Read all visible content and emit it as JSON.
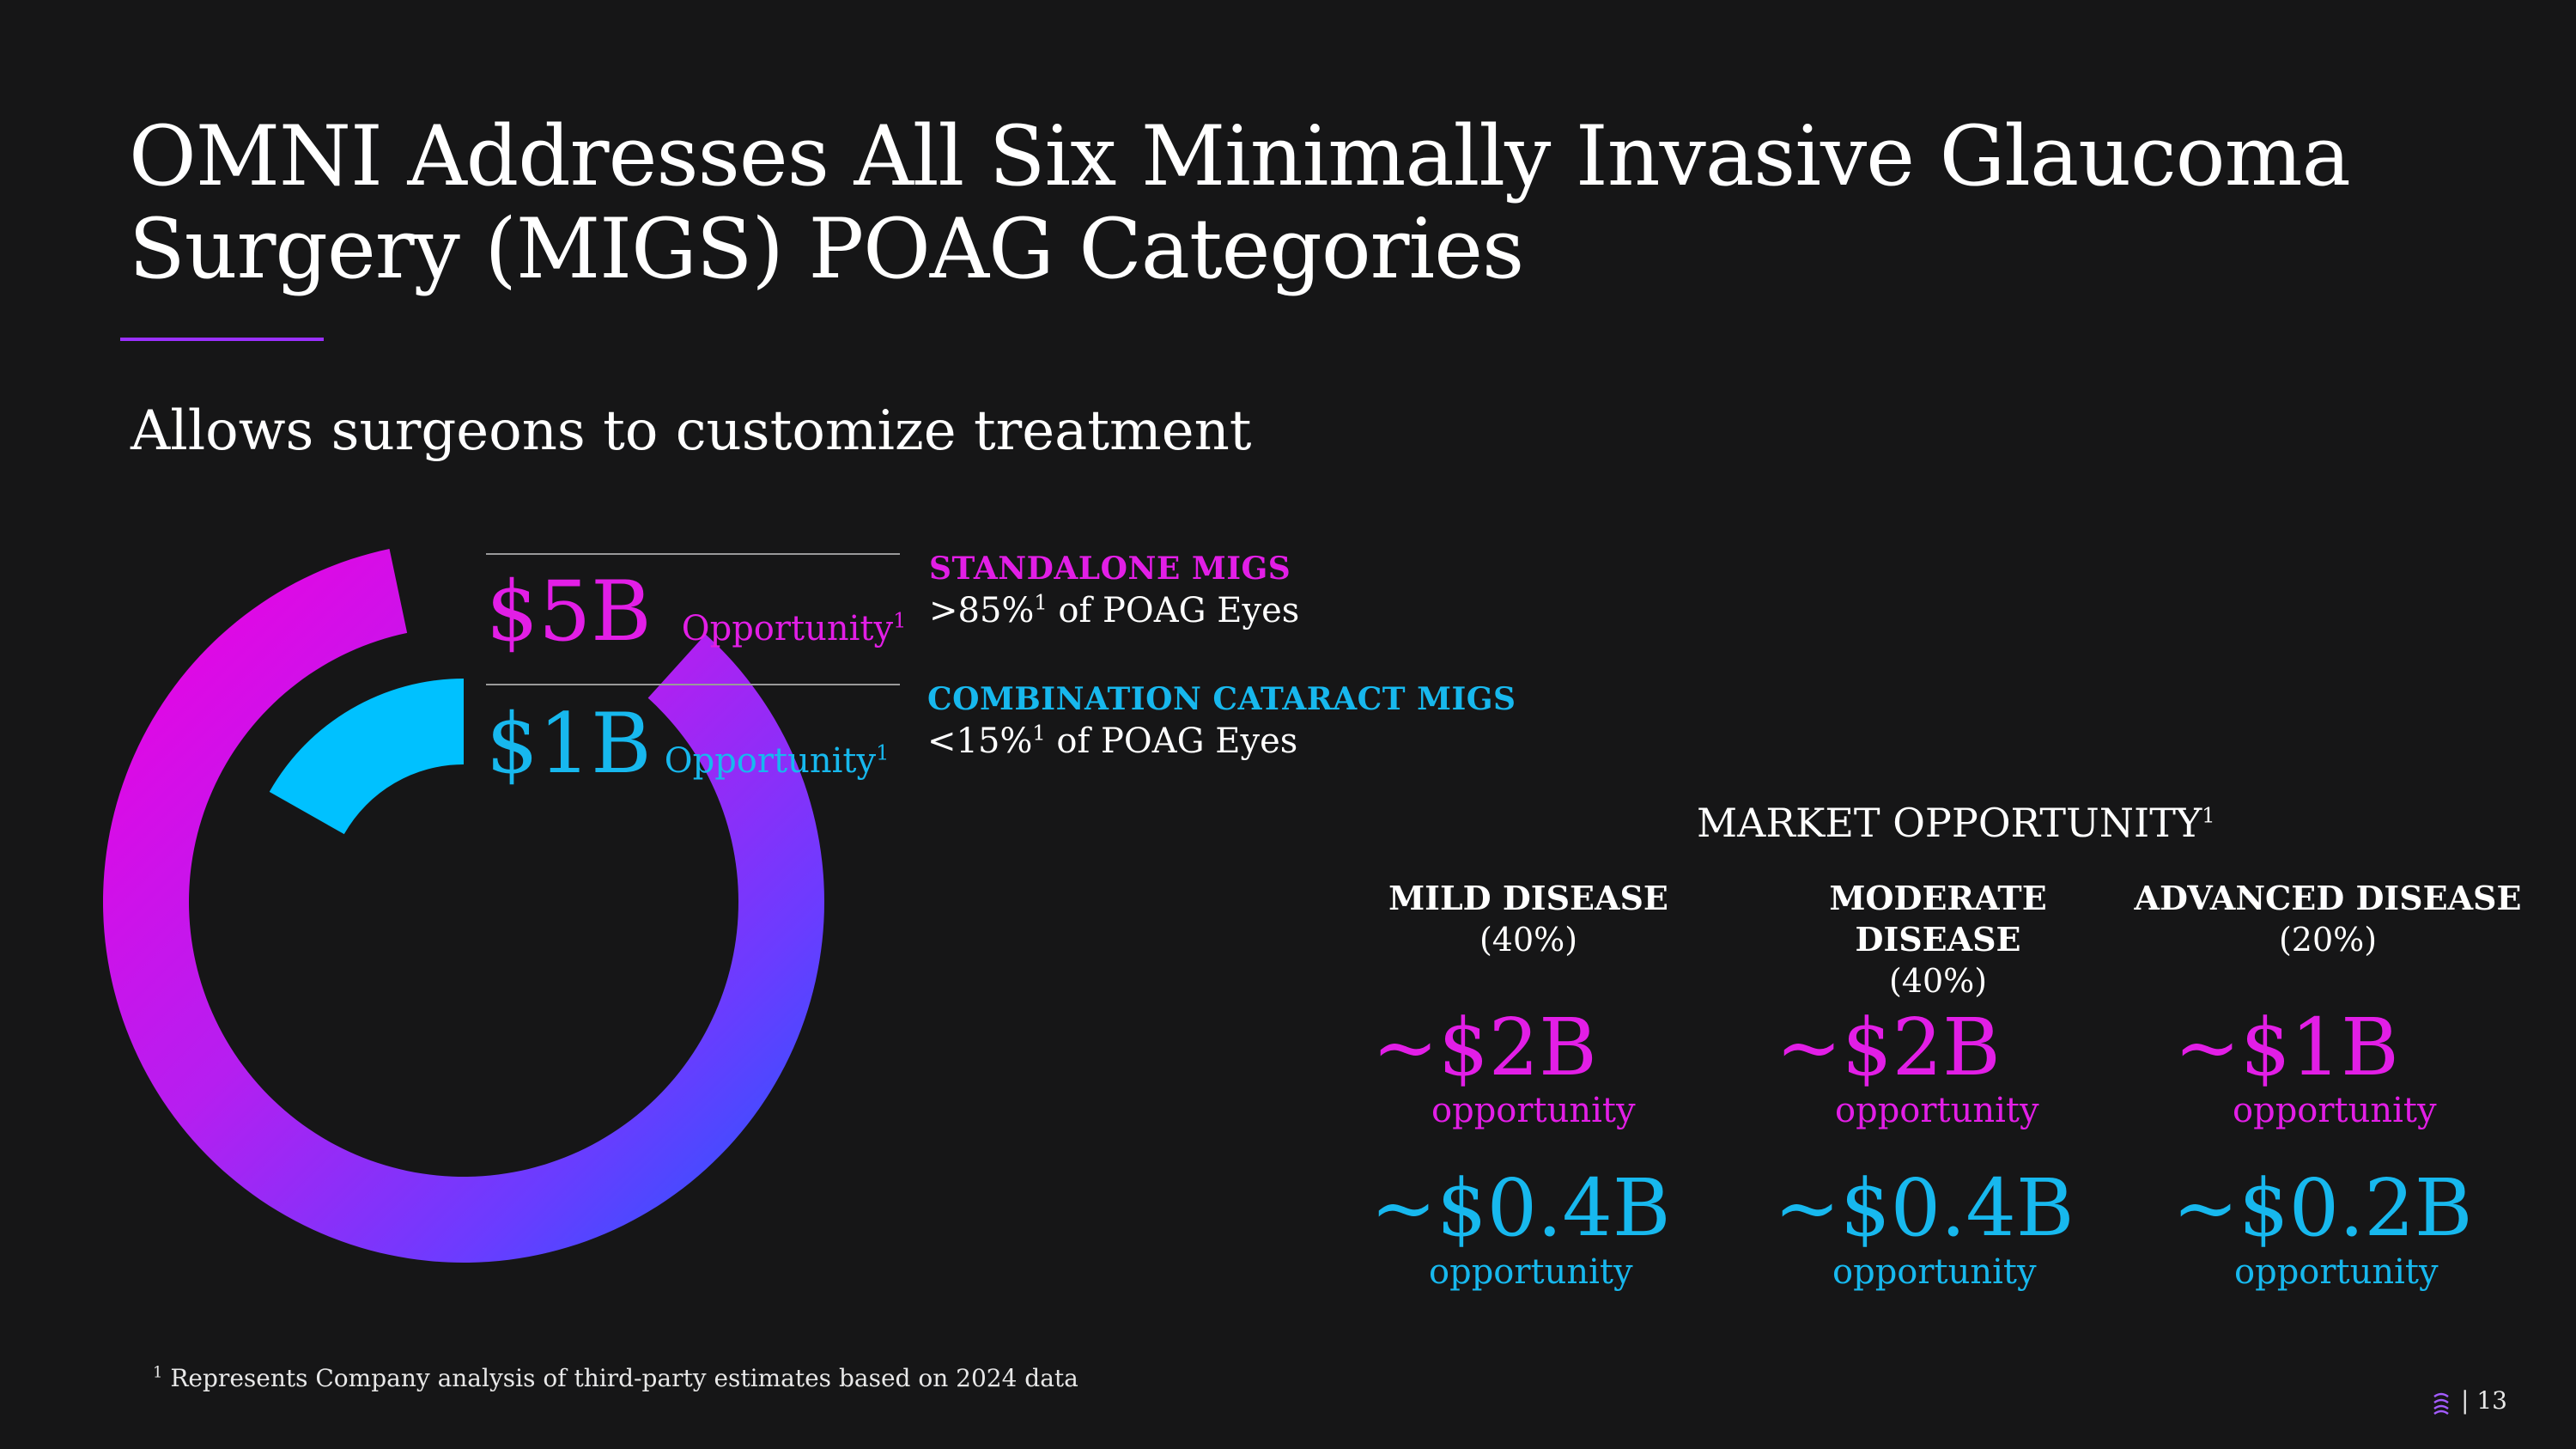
{
  "title": {
    "line1": "OMNI Addresses All Six Minimally Invasive Glaucoma",
    "line2": "Surgery (MIGS) POAG Categories"
  },
  "subtitle": "Allows surgeons to customize treatment",
  "colors": {
    "magenta": "#e21ee6",
    "cyan": "#17b8ee",
    "accent": "#9b30ff",
    "blue": "#2a5bff"
  },
  "opportunities": {
    "standalone": {
      "value": "$5B",
      "label": "Opportunity",
      "sup": "1"
    },
    "combination": {
      "value": "$1B",
      "label": "Opportunity",
      "sup": "1"
    }
  },
  "categories": {
    "standalone": {
      "title": "STANDALONE MIGS",
      "prefix": ">85%",
      "sup": "1",
      "suffix": " of POAG Eyes"
    },
    "combination": {
      "title": "COMBINATION CATARACT MIGS",
      "prefix": "<15%",
      "sup": "1",
      "suffix": " of POAG Eyes"
    }
  },
  "market": {
    "heading": "MARKET OPPORTUNITY",
    "heading_sup": "1",
    "columns": [
      {
        "title": "MILD DISEASE",
        "pct": "(40%)",
        "standalone_amount": "~$2B",
        "standalone_label": "opportunity",
        "combo_amount": "~$0.4B",
        "combo_label": "opportunity"
      },
      {
        "title_line1": "MODERATE",
        "title_line2": "DISEASE",
        "pct": "(40%)",
        "standalone_amount": "~$2B",
        "standalone_label": "opportunity",
        "combo_amount": "~$0.4B",
        "combo_label": "opportunity"
      },
      {
        "title": "ADVANCED DISEASE",
        "pct": "(20%)",
        "standalone_amount": "~$1B",
        "standalone_label": "opportunity",
        "combo_amount": "~$0.2B",
        "combo_label": "opportunity"
      }
    ]
  },
  "donut_chart": {
    "outer_share_percent": 85,
    "inner_share_percent": 15
  },
  "footnote": {
    "sup": "1",
    "text": " Represents Company analysis of third-party estimates based on 2024 data"
  },
  "page": {
    "number": "13",
    "separator": "| "
  },
  "icons": {
    "logo": "company-logo-icon"
  }
}
